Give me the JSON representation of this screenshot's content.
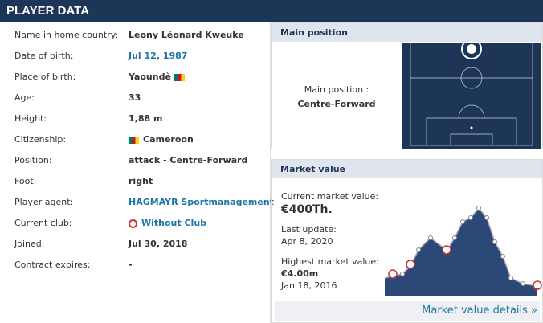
{
  "header": {
    "title": "PLAYER DATA"
  },
  "player_data": {
    "rows": [
      {
        "label": "Name in home country:",
        "value": "Leony Léonard Kweuke"
      },
      {
        "label": "Date of birth:",
        "value": "Jul 12, 1987",
        "link": true
      },
      {
        "label": "Place of birth:",
        "value": "Yaoundè",
        "flag": true
      },
      {
        "label": "Age:",
        "value": "33"
      },
      {
        "label": "Height:",
        "value": "1,88 m"
      },
      {
        "label": "Citizenship:",
        "value": "Cameroon",
        "flag": true
      },
      {
        "label": "Position:",
        "value": "attack - Centre-Forward"
      },
      {
        "label": "Foot:",
        "value": "right"
      },
      {
        "label": "Player agent:",
        "value": "HAGMAYR Sportmanagement",
        "link": true
      },
      {
        "label": "Current club:",
        "value": "Without Club",
        "link": true,
        "club_icon": true
      },
      {
        "label": "Joined:",
        "value": "Jul 30, 2018"
      },
      {
        "label": "Contract expires:",
        "value": "-"
      }
    ]
  },
  "main_position": {
    "title": "Main position",
    "label": "Main position :",
    "value": "Centre-Forward"
  },
  "market_value": {
    "title": "Market value",
    "current_label": "Current market value:",
    "current_value": "€400Th.",
    "last_update_label": "Last update:",
    "last_update_value": "Apr 8, 2020",
    "highest_label": "Highest market value:",
    "highest_value": "€4.00m",
    "highest_date": "Jan 18, 2016",
    "link": "Market value details »"
  }
}
